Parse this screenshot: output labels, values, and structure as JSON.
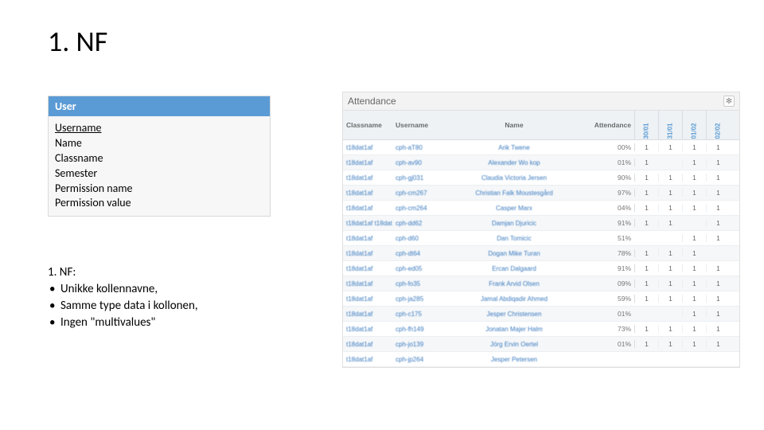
{
  "title": "1. NF",
  "user_box": {
    "header": "User",
    "fields": [
      "Username",
      "Name",
      "Classname",
      "Semester",
      "Permission name",
      "Permission value"
    ],
    "underlined_index": 0
  },
  "nf": {
    "heading": "1. NF:",
    "bullets": [
      "Unikke kollennavne,",
      "Samme type data i kollonen,",
      "Ingen \"multivalues\""
    ]
  },
  "shot": {
    "title": "Attendance",
    "columns": [
      "Classname",
      "Username",
      "Name",
      "Attendance"
    ],
    "date_cols": [
      "30/01",
      "31/01",
      "01/02",
      "02/02"
    ],
    "rows": [
      {
        "class": "t18dat1af",
        "user": "cph-aT80",
        "name": "Arik Twene",
        "att": "00%",
        "d": [
          1,
          1,
          1,
          1
        ]
      },
      {
        "class": "t18dat1af",
        "user": "cph-av90",
        "name": "Alexander Wo kop",
        "att": "01%",
        "d": [
          1,
          "",
          1,
          1
        ]
      },
      {
        "class": "t18dat1af",
        "user": "cph-gj031",
        "name": "Claudia Victoria Jersen",
        "att": "90%",
        "d": [
          1,
          1,
          1,
          1
        ]
      },
      {
        "class": "t18dat1af",
        "user": "cph-cm267",
        "name": "Christian Falk Moustesgård",
        "att": "97%",
        "d": [
          1,
          1,
          1,
          1
        ]
      },
      {
        "class": "t18dat1af",
        "user": "cph-cm264",
        "name": "Casper Marx",
        "att": "04%",
        "d": [
          1,
          1,
          1,
          1
        ]
      },
      {
        "class": "t18dat1af\nt18dat2ae",
        "user": "cph-dd62",
        "name": "Damjan Djuricic",
        "att": "91%",
        "d": [
          1,
          1,
          "",
          1
        ]
      },
      {
        "class": "t18dat1af",
        "user": "cph-d60",
        "name": "Dan Tomicic",
        "att": "51%",
        "d": [
          "",
          "",
          1,
          1
        ]
      },
      {
        "class": "t18dat1af",
        "user": "cph-dt64",
        "name": "Dogan Mike Turan",
        "att": "78%",
        "d": [
          1,
          1,
          1,
          ""
        ]
      },
      {
        "class": "t18dat1af",
        "user": "cph-ed05",
        "name": "Ercan Dalgaard",
        "att": "91%",
        "d": [
          1,
          1,
          1,
          1
        ]
      },
      {
        "class": "t18dat1af",
        "user": "cph-fo35",
        "name": "Frank Arvid Olsen",
        "att": "09%",
        "d": [
          1,
          1,
          1,
          1
        ]
      },
      {
        "class": "t18dat1af",
        "user": "cph-ja285",
        "name": "Jamal Abdiqadir Ahmed",
        "att": "59%",
        "d": [
          1,
          1,
          1,
          1
        ]
      },
      {
        "class": "t18dat1af",
        "user": "cph-c175",
        "name": "Jesper Christensen",
        "att": "01%",
        "d": [
          "",
          "",
          1,
          1
        ]
      },
      {
        "class": "t18dat1af",
        "user": "cph-fh149",
        "name": "Jonatan Majer Halm",
        "att": "73%",
        "d": [
          1,
          1,
          1,
          1
        ]
      },
      {
        "class": "t18dat1af",
        "user": "cph-jo139",
        "name": "Jörg Ervin Oertel",
        "att": "01%",
        "d": [
          1,
          1,
          1,
          1
        ]
      },
      {
        "class": "t18dat1af",
        "user": "cph-jp264",
        "name": "Jesper Petersen",
        "att": "",
        "d": [
          "",
          "",
          "",
          ""
        ]
      }
    ]
  },
  "style": {
    "header_bg": "#5b9bd5",
    "link_color": "#3b7bbf"
  }
}
